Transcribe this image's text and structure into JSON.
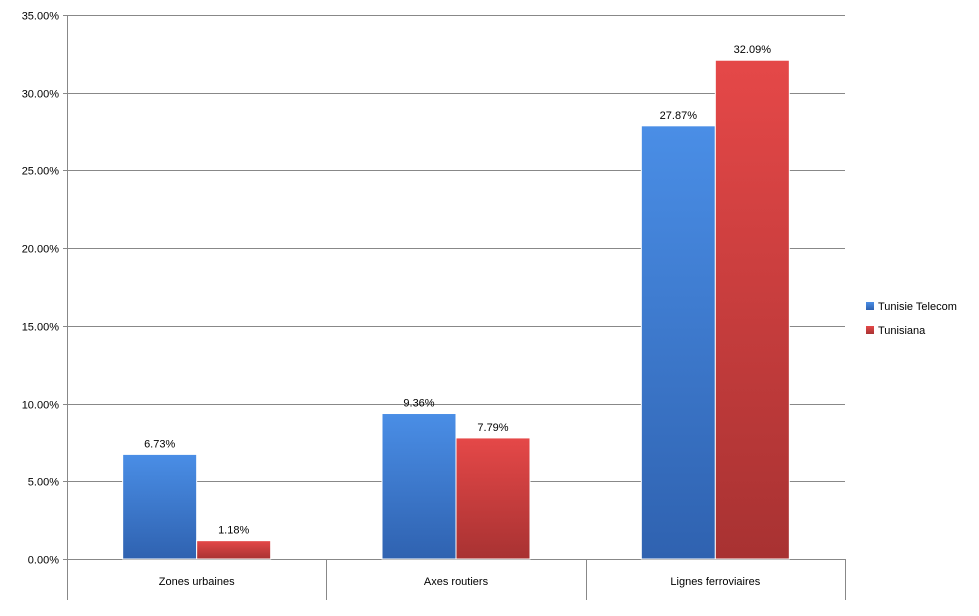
{
  "chart_data": {
    "type": "bar",
    "title": "",
    "xlabel": "",
    "ylabel": "",
    "categories": [
      "Zones urbaines",
      "Axes routiers",
      "Lignes ferroviaires"
    ],
    "series": [
      {
        "name": "Tunisie Telecom",
        "color": "#3f7fd6",
        "values": [
          6.73,
          9.36,
          27.87
        ],
        "labels": [
          "6.73%",
          "9.36%",
          "27.87%"
        ]
      },
      {
        "name": "Tunisiana",
        "color": "#d84040",
        "values": [
          1.18,
          7.79,
          32.09
        ],
        "labels": [
          "1.18%",
          "7.79%",
          "32.09%"
        ]
      }
    ],
    "ylim": [
      0,
      35
    ],
    "yticks": [
      0,
      5,
      10,
      15,
      20,
      25,
      30,
      35
    ],
    "ytick_labels": [
      "0.00%",
      "5.00%",
      "10.00%",
      "15.00%",
      "20.00%",
      "25.00%",
      "30.00%",
      "35.00%"
    ],
    "grid": true,
    "legend_position": "right"
  }
}
